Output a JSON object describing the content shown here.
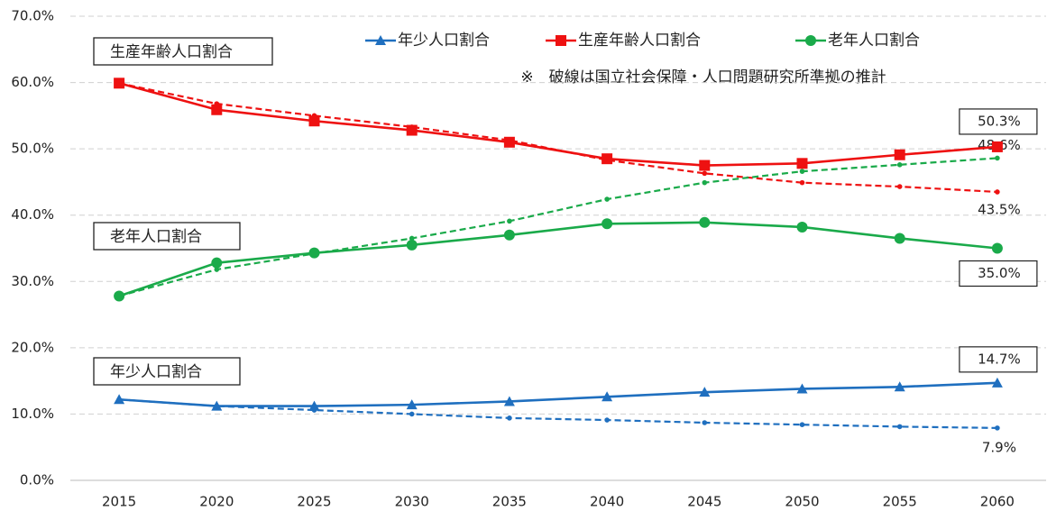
{
  "chart_data": {
    "type": "line",
    "x": [
      2015,
      2020,
      2025,
      2030,
      2035,
      2040,
      2045,
      2050,
      2055,
      2060
    ],
    "xlim": [
      2012.5,
      2062.5
    ],
    "ylim": [
      0,
      70
    ],
    "yticks": [
      {
        "value": 0,
        "label": "0.0%"
      },
      {
        "value": 10,
        "label": "10.0%"
      },
      {
        "value": 20,
        "label": "20.0%"
      },
      {
        "value": 30,
        "label": "30.0%"
      },
      {
        "value": 40,
        "label": "40.0%"
      },
      {
        "value": 50,
        "label": "50.0%"
      },
      {
        "value": 60,
        "label": "60.0%"
      },
      {
        "value": 70,
        "label": "70.0%"
      }
    ],
    "grid": true,
    "note": "※　破線は国立社会保障・人口問題研究所準拠の推計",
    "annotations": [
      "生産年齢人口割合",
      "老年人口割合",
      "年少人口割合"
    ],
    "series": [
      {
        "name": "年少人口割合",
        "color": "#1f6fbf",
        "marker": "triangle",
        "dashed": false,
        "values": [
          12.2,
          11.2,
          11.2,
          11.4,
          11.9,
          12.6,
          13.3,
          13.8,
          14.1,
          14.7
        ],
        "value_labels": [
          null,
          null,
          null,
          null,
          null,
          null,
          null,
          null,
          null,
          "14.7%"
        ]
      },
      {
        "name": "生産年齢人口割合",
        "color": "#ee1111",
        "marker": "square",
        "dashed": false,
        "values": [
          59.9,
          55.9,
          54.2,
          52.8,
          51.0,
          48.5,
          47.5,
          47.8,
          49.1,
          50.3
        ],
        "value_labels": [
          null,
          null,
          null,
          null,
          null,
          null,
          null,
          null,
          null,
          "50.3%"
        ]
      },
      {
        "name": "老年人口割合",
        "color": "#1aaa4a",
        "marker": "circle",
        "dashed": false,
        "values": [
          27.8,
          32.8,
          34.3,
          35.5,
          37.0,
          38.7,
          38.9,
          38.2,
          36.5,
          35.0
        ],
        "value_labels": [
          null,
          null,
          null,
          null,
          null,
          null,
          null,
          null,
          null,
          "35.0%"
        ]
      },
      {
        "color": "#1f6fbf",
        "marker": "small",
        "dashed": true,
        "values": [
          12.2,
          11.2,
          10.6,
          10.0,
          9.4,
          9.1,
          8.7,
          8.4,
          8.1,
          7.9
        ],
        "value_labels": [
          null,
          null,
          null,
          null,
          null,
          null,
          null,
          null,
          null,
          "7.9%"
        ]
      },
      {
        "color": "#ee1111",
        "marker": "small",
        "dashed": true,
        "values": [
          59.9,
          56.8,
          55.0,
          53.3,
          51.3,
          48.3,
          46.3,
          44.9,
          44.3,
          43.5
        ],
        "value_labels": [
          null,
          null,
          null,
          null,
          null,
          null,
          null,
          null,
          null,
          "43.5%"
        ]
      },
      {
        "color": "#1aaa4a",
        "marker": "small",
        "dashed": true,
        "values": [
          27.8,
          31.8,
          34.2,
          36.5,
          39.1,
          42.4,
          44.9,
          46.6,
          47.6,
          48.6
        ],
        "value_labels": [
          null,
          null,
          null,
          null,
          null,
          null,
          null,
          null,
          null,
          "48.6%"
        ]
      }
    ]
  }
}
